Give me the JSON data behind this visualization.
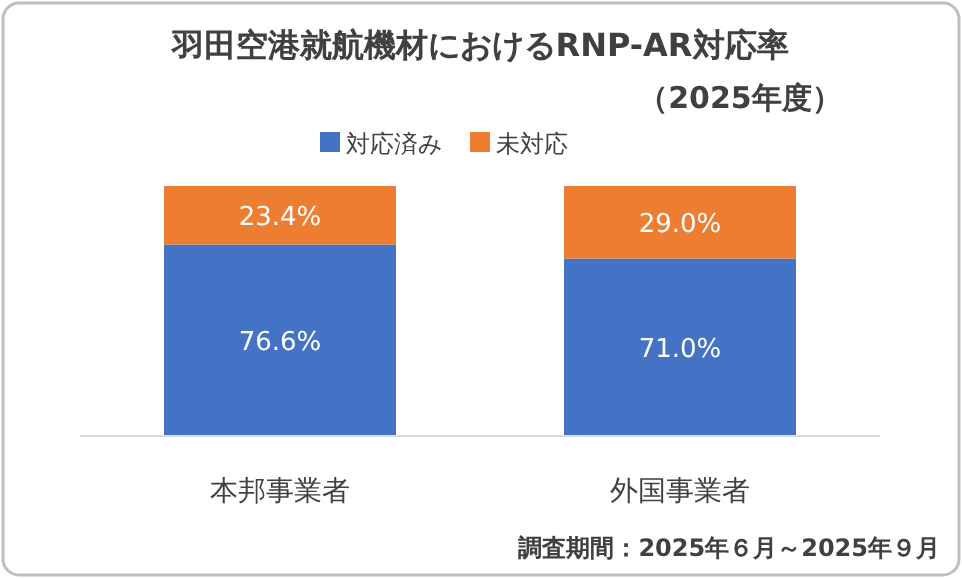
{
  "chart_data": {
    "type": "bar",
    "stacked": true,
    "title": "羽田空港就航機材におけるRNP-AR対応率",
    "subtitle": "（2025年度）",
    "categories": [
      "本邦事業者",
      "外国事業者"
    ],
    "series": [
      {
        "name": "対応済み",
        "color": "#4472c4",
        "values": [
          76.6,
          71.0
        ],
        "value_labels": [
          "76.6%",
          "71.0%"
        ]
      },
      {
        "name": "未対応",
        "color": "#ed7d31",
        "values": [
          23.4,
          29.0
        ],
        "value_labels": [
          "23.4%",
          "29.0%"
        ]
      }
    ],
    "legend": "top",
    "annotations": [
      "調査期間：2025年６月～2025年９月"
    ]
  }
}
